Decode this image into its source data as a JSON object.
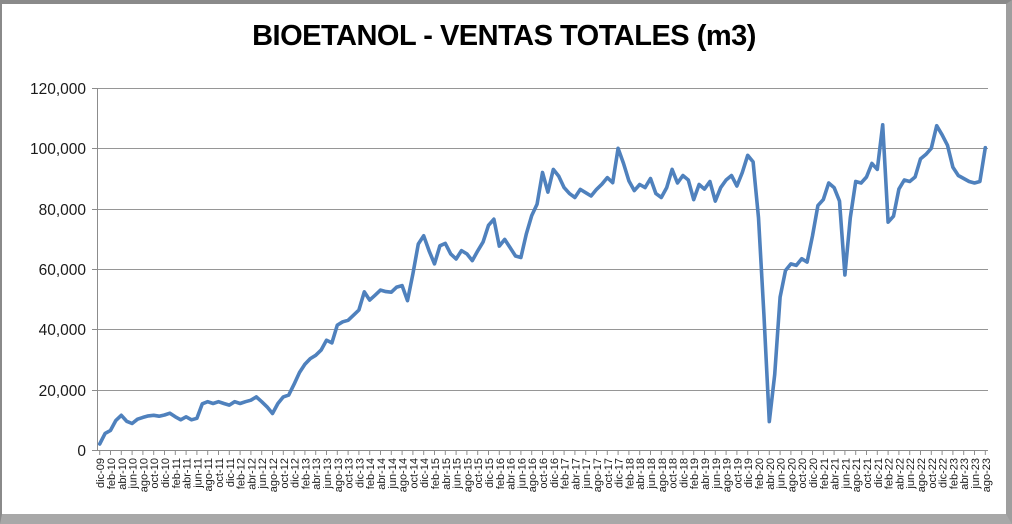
{
  "chart_data": {
    "type": "line",
    "title": "BIOETANOL - VENTAS TOTALES (m3)",
    "xlabel": "",
    "ylabel": "",
    "ylim": [
      0,
      120000
    ],
    "y_ticks": [
      0,
      20000,
      40000,
      60000,
      80000,
      100000,
      120000
    ],
    "y_tick_labels": [
      "0",
      "20,000",
      "40,000",
      "60,000",
      "80,000",
      "100,000",
      "120,000"
    ],
    "grid": "horizontal",
    "legend": "none",
    "line_color": "#4F81BD",
    "grid_color": "#969696",
    "axis_color": "#8c8c8c",
    "text_color": "#1a1a1a",
    "start_month": "dic-09",
    "end_month": "ago-23",
    "frequency": "monthly",
    "n_points": 165,
    "label_every_n_points": 2,
    "x_tick_labels": [
      "dic-09",
      "feb-10",
      "abr-10",
      "jun-10",
      "ago-10",
      "oct-10",
      "dic-10",
      "feb-11",
      "abr-11",
      "jun-11",
      "ago-11",
      "oct-11",
      "dic-11",
      "feb-12",
      "abr-12",
      "jun-12",
      "ago-12",
      "oct-12",
      "dic-12",
      "feb-13",
      "abr-13",
      "jun-13",
      "ago-13",
      "oct-13",
      "dic-13",
      "feb-14",
      "abr-14",
      "jun-14",
      "ago-14",
      "oct-14",
      "dic-14",
      "feb-15",
      "abr-15",
      "jun-15",
      "ago-15",
      "oct-15",
      "dic-15",
      "feb-16",
      "abr-16",
      "jun-16",
      "ago-16",
      "oct-16",
      "dic-16",
      "feb-17",
      "abr-17",
      "jun-17",
      "ago-17",
      "oct-17",
      "dic-17",
      "feb-18",
      "abr-18",
      "jun-18",
      "ago-18",
      "oct-18",
      "dic-18",
      "feb-19",
      "abr-19",
      "jun-19",
      "ago-19",
      "oct-19",
      "dic-19",
      "feb-20",
      "abr-20",
      "jun-20",
      "ago-20",
      "oct-20",
      "dic-20",
      "feb-21",
      "abr-21",
      "jun-21",
      "ago-21",
      "oct-21",
      "dic-21",
      "feb-22",
      "abr-22",
      "jun-22",
      "ago-22",
      "oct-22",
      "dic-22",
      "feb-23",
      "abr-23",
      "jun-23",
      "ago-23"
    ],
    "values": [
      2000,
      5500,
      6500,
      9800,
      11500,
      9500,
      8800,
      10200,
      10800,
      11300,
      11500,
      11200,
      11600,
      12200,
      11000,
      10000,
      11000,
      10000,
      10500,
      15300,
      16000,
      15400,
      16000,
      15400,
      14900,
      16000,
      15400,
      16000,
      16500,
      17600,
      16000,
      14300,
      12100,
      15400,
      17600,
      18200,
      21800,
      25700,
      28400,
      30300,
      31400,
      33100,
      36400,
      35500,
      41400,
      42500,
      43000,
      44700,
      46400,
      52400,
      49700,
      51300,
      53000,
      52500,
      52300,
      54000,
      54500,
      49500,
      58400,
      68300,
      71000,
      66000,
      61700,
      67700,
      68500,
      65000,
      63300,
      66100,
      65000,
      62800,
      66000,
      69000,
      74500,
      76500,
      67600,
      69800,
      67100,
      64300,
      63800,
      71600,
      77700,
      81500,
      92000,
      85500,
      93000,
      90800,
      87000,
      85000,
      83700,
      86400,
      85300,
      84200,
      86400,
      88100,
      90300,
      88600,
      100000,
      95000,
      89200,
      86000,
      88000,
      87000,
      90000,
      85000,
      83700,
      87000,
      93000,
      88500,
      91000,
      89500,
      83000,
      88000,
      86500,
      89000,
      82500,
      87000,
      89500,
      91000,
      87500,
      92000,
      97700,
      95500,
      77000,
      45000,
      9400,
      25000,
      50700,
      59500,
      61700,
      61200,
      63400,
      62300,
      71000,
      81000,
      83000,
      88500,
      87000,
      82500,
      58000,
      77000,
      89000,
      88500,
      90500,
      95000,
      93000,
      107800,
      75500,
      77500,
      86500,
      89500,
      89000,
      90500,
      96500,
      98000,
      100000,
      107500,
      104500,
      101000,
      93700,
      91000,
      90000,
      89000,
      88500,
      89000,
      100200
    ]
  }
}
